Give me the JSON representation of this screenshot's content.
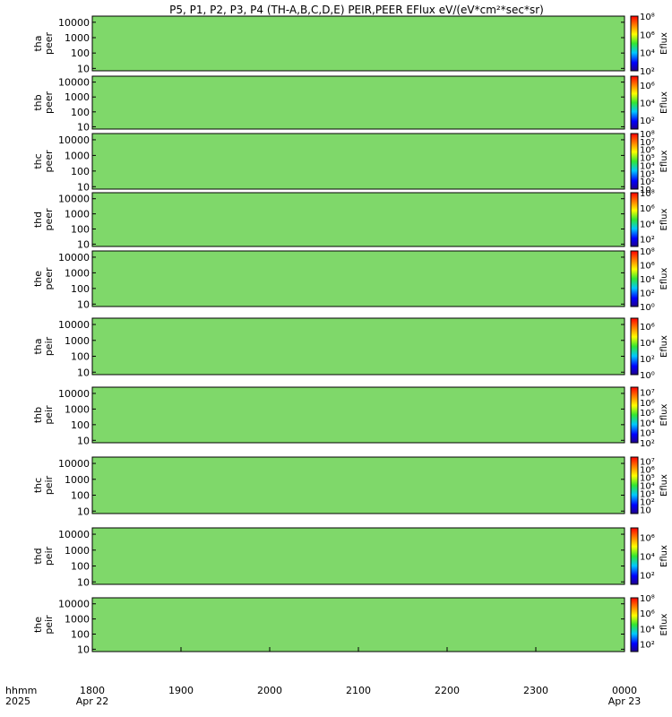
{
  "title": "P5, P1, P2, P3, P4 (TH-A,B,C,D,E) PEIR,PEER EFlux eV/(eV*cm²*sec*sr)",
  "chart_data": {
    "type": "heatmap",
    "title": "P5, P1, P2, P3, P4 (TH-A,B,C,D,E) PEIR,PEER EFlux eV/(eV*cm²*sec*sr)",
    "x_axis": {
      "row_label": "hhmm",
      "year_label": "2025",
      "ticks": [
        "1800",
        "1900",
        "2000",
        "2100",
        "2200",
        "2300",
        "0000"
      ],
      "date_labels": [
        "Apr 22",
        "Apr 23"
      ],
      "range": [
        "2025-04-22 18:00",
        "2025-04-23 00:00"
      ]
    },
    "y_axis": {
      "scale": "log",
      "unit": "eV",
      "ticks": [
        "10",
        "100",
        "1000",
        "10000"
      ],
      "range": [
        7,
        25000
      ]
    },
    "colorbar": {
      "label": "Eflux",
      "scale": "log"
    },
    "panels": [
      {
        "probe": "tha",
        "species": "peer",
        "cbar_ticks": [
          "10²",
          "10⁴",
          "10⁶",
          "10⁸"
        ],
        "cbar_range": [
          2,
          8
        ]
      },
      {
        "probe": "thb",
        "species": "peer",
        "cbar_ticks": [
          "10²",
          "10⁴",
          "10⁶"
        ],
        "cbar_range": [
          1,
          7
        ]
      },
      {
        "probe": "thc",
        "species": "peer",
        "cbar_ticks": [
          "10",
          "10²",
          "10³",
          "10⁴",
          "10⁵",
          "10⁶",
          "10⁷",
          "10⁸"
        ],
        "cbar_range": [
          1,
          8
        ]
      },
      {
        "probe": "thd",
        "species": "peer",
        "cbar_ticks": [
          "10²",
          "10⁴",
          "10⁶",
          "10⁸"
        ],
        "cbar_range": [
          1,
          8
        ]
      },
      {
        "probe": "the",
        "species": "peer",
        "cbar_ticks": [
          "10⁰",
          "10²",
          "10⁴",
          "10⁶",
          "10⁸"
        ],
        "cbar_range": [
          0,
          8
        ]
      },
      {
        "probe": "tha",
        "species": "peir",
        "cbar_ticks": [
          "10⁰",
          "10²",
          "10⁴",
          "10⁶"
        ],
        "cbar_range": [
          0,
          7
        ]
      },
      {
        "probe": "thb",
        "species": "peir",
        "cbar_ticks": [
          "10²",
          "10³",
          "10⁴",
          "10⁵",
          "10⁶",
          "10⁷"
        ],
        "cbar_range": [
          2,
          7.5
        ]
      },
      {
        "probe": "thc",
        "species": "peir",
        "cbar_ticks": [
          "10",
          "10²",
          "10³",
          "10⁴",
          "10⁵",
          "10⁶",
          "10⁷"
        ],
        "cbar_range": [
          0.5,
          7.5
        ]
      },
      {
        "probe": "thd",
        "species": "peir",
        "cbar_ticks": [
          "10²",
          "10⁴",
          "10⁶"
        ],
        "cbar_range": [
          1,
          7
        ]
      },
      {
        "probe": "the",
        "species": "peir",
        "cbar_ticks": [
          "10²",
          "10⁴",
          "10⁶",
          "10⁸"
        ],
        "cbar_range": [
          1,
          8
        ]
      }
    ]
  }
}
